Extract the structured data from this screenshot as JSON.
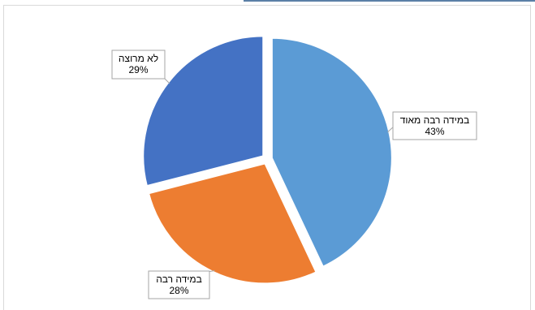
{
  "chart_data": {
    "type": "pie",
    "slices": [
      {
        "label": "במידה רבה מאוד",
        "value": 43,
        "value_label": "43%",
        "color": "#5b9bd5"
      },
      {
        "label": "במידה רבה",
        "value": 28,
        "value_label": "28%",
        "color": "#ed7d31"
      },
      {
        "label": "לא מרוצה",
        "value": 29,
        "value_label": "29%",
        "color": "#4472c4"
      }
    ],
    "exploded": true,
    "legend": "none",
    "data_labels": "callouts",
    "start_angle": "12 o'clock",
    "direction": "clockwise"
  }
}
